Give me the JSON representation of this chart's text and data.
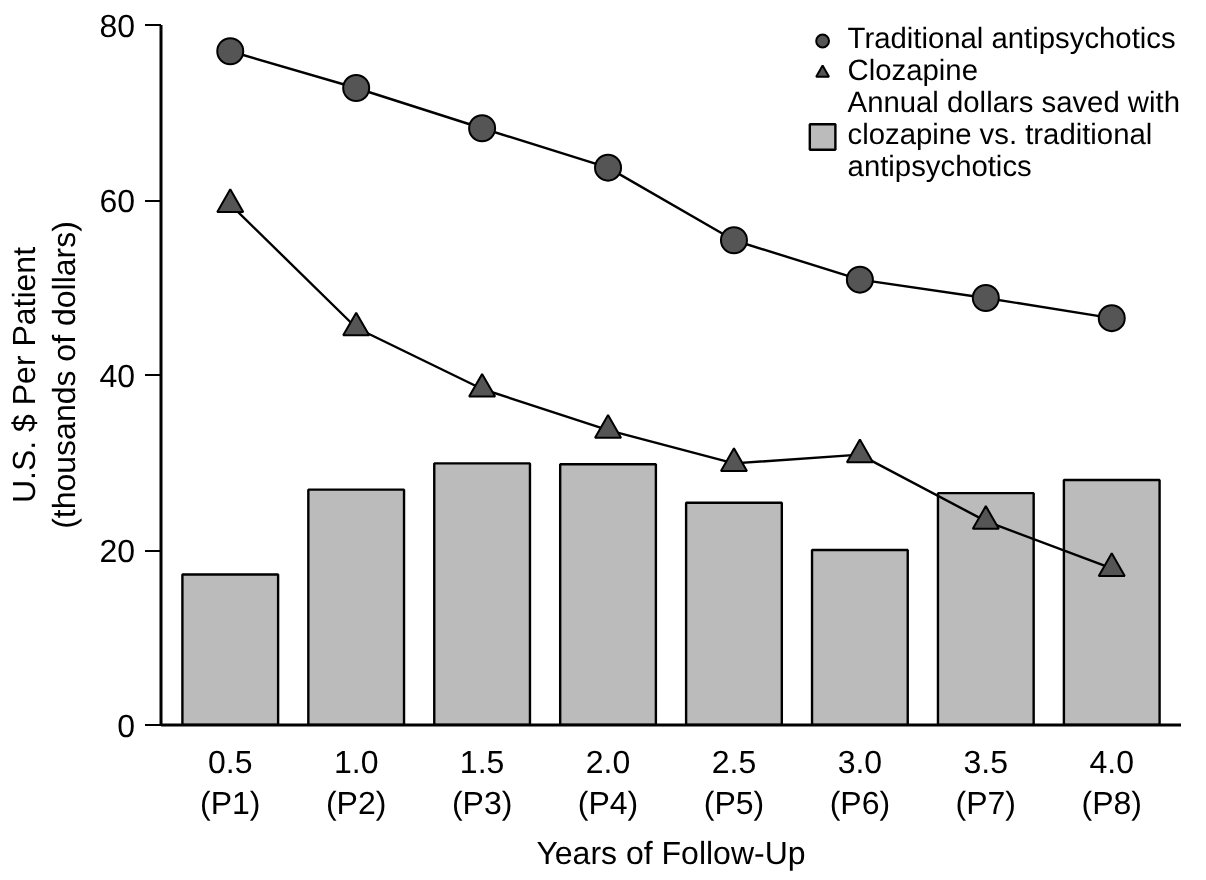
{
  "chart_data": {
    "type": "bar",
    "xlabel": "Years of Follow-Up",
    "ylabel": "U.S. $ Per Patient\n(thousands of dollars)",
    "categories": [
      "0.5\n(P1)",
      "1.0\n(P2)",
      "1.5\n(P3)",
      "2.0\n(P4)",
      "2.5\n(P5)",
      "3.0\n(P6)",
      "3.5\n(P7)",
      "4.0\n(P8)"
    ],
    "series": [
      {
        "name": "Traditional antipsychotics",
        "type": "line",
        "marker": "circle",
        "color": "#555555",
        "values": [
          77.0,
          72.8,
          68.2,
          63.7,
          55.4,
          50.9,
          48.8,
          46.5
        ]
      },
      {
        "name": "Clozapine",
        "type": "line",
        "marker": "triangle",
        "color": "#555555",
        "values": [
          59.5,
          45.4,
          38.4,
          33.7,
          29.9,
          30.9,
          23.3,
          17.9
        ]
      },
      {
        "name": "Annual dollars saved with clozapine vs. traditional antipsychotics",
        "color": "#bbbbbb",
        "values": [
          17.2,
          26.9,
          29.9,
          29.8,
          25.4,
          20.0,
          26.5,
          28.0
        ]
      }
    ],
    "ylim": [
      0,
      80
    ],
    "yticks": [
      0,
      20,
      40,
      60,
      80
    ],
    "grid": false,
    "legend": "top right"
  }
}
